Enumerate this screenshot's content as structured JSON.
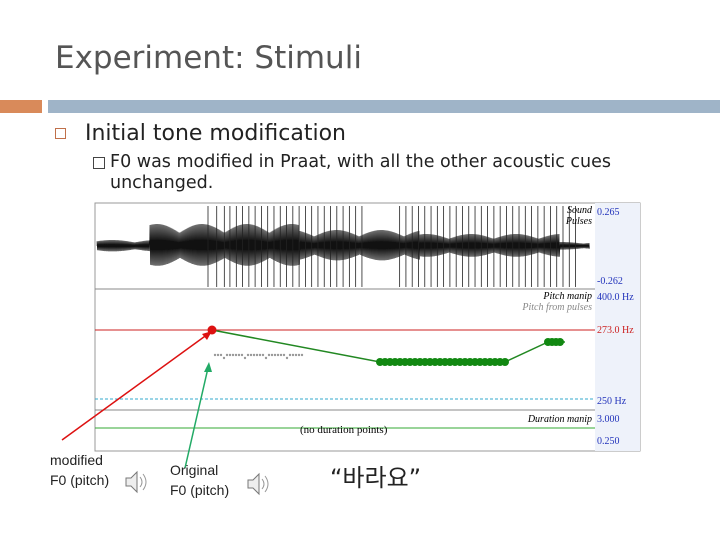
{
  "header": {
    "title": "Experiment: Stimuli"
  },
  "bullets": [
    {
      "text": "Initial tone modification",
      "sub": [
        "F0 was modified in Praat, with all the other acoustic cues unchanged."
      ]
    }
  ],
  "praat": {
    "sound_label": "Sound",
    "pulses_label": "Pulses",
    "amp_top": "0.265",
    "amp_bottom": "-0.262",
    "pitch_manip_label": "Pitch manip",
    "pitch_pulses_label": "Pitch from pulses",
    "pitch_top": "400.0 Hz",
    "pitch_mark": "273.0 Hz",
    "pitch_bottom": "250 Hz",
    "duration_label": "Duration manip",
    "duration_top": "3.000",
    "duration_bottom": "0.250",
    "no_duration": "(no duration points)"
  },
  "captions": {
    "modified": [
      "modified",
      "F0 (pitch)"
    ],
    "original": [
      "Original",
      "F0 (pitch)"
    ],
    "word": "“바라요”"
  }
}
